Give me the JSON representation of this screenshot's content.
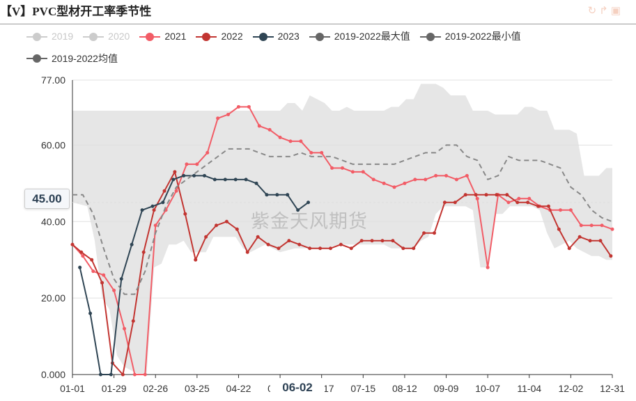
{
  "title": "【V】PVC型材开工率季节性",
  "toolbar_icons": [
    "refresh-icon",
    "share-icon",
    "save-image-icon"
  ],
  "watermark": "紫金天风期货",
  "pointer": {
    "y_label": "45.00",
    "x_label": "06-02"
  },
  "chart_data": {
    "type": "line",
    "xticks": [
      "01-01",
      "01-29",
      "02-26",
      "03-25",
      "04-22",
      "05-20",
      "06-17",
      "07-15",
      "08-12",
      "09-09",
      "10-07",
      "11-04",
      "12-02",
      "12-31"
    ],
    "ylim": [
      0,
      77
    ],
    "yticks": [
      "0.000",
      "20.00",
      "40.00",
      "60.00",
      "77.00"
    ],
    "y_values_of_ticks": [
      0,
      20,
      40,
      60,
      77
    ],
    "grid": true,
    "legend_position": "top",
    "band": {
      "upper_name": "2019-2022最大值",
      "lower_name": "2019-2022最小值",
      "color": "#e6e6e6",
      "upper": [
        [
          0,
          69
        ],
        [
          10,
          69
        ],
        [
          20,
          69
        ],
        [
          30,
          69
        ],
        [
          40,
          69
        ],
        [
          50,
          69
        ],
        [
          60,
          69
        ],
        [
          70,
          69
        ],
        [
          80,
          69
        ],
        [
          90,
          69
        ],
        [
          95,
          69
        ],
        [
          100,
          69
        ],
        [
          110,
          69
        ],
        [
          120,
          69
        ],
        [
          130,
          69
        ],
        [
          140,
          69
        ],
        [
          145,
          71
        ],
        [
          150,
          71
        ],
        [
          155,
          69
        ],
        [
          160,
          73
        ],
        [
          165,
          72
        ],
        [
          170,
          71
        ],
        [
          175,
          69
        ],
        [
          180,
          69
        ],
        [
          185,
          70
        ],
        [
          190,
          69
        ],
        [
          200,
          69
        ],
        [
          210,
          69
        ],
        [
          215,
          70
        ],
        [
          220,
          70
        ],
        [
          225,
          72
        ],
        [
          230,
          72
        ],
        [
          235,
          76
        ],
        [
          240,
          76
        ],
        [
          245,
          76
        ],
        [
          250,
          75
        ],
        [
          255,
          73
        ],
        [
          260,
          73
        ],
        [
          265,
          73
        ],
        [
          270,
          69
        ],
        [
          275,
          69
        ],
        [
          280,
          69
        ],
        [
          285,
          68
        ],
        [
          290,
          68
        ],
        [
          295,
          68
        ],
        [
          300,
          68
        ],
        [
          305,
          70
        ],
        [
          310,
          70
        ],
        [
          315,
          69
        ],
        [
          320,
          69
        ],
        [
          325,
          64
        ],
        [
          330,
          64
        ],
        [
          335,
          64
        ],
        [
          340,
          63
        ],
        [
          345,
          52
        ],
        [
          350,
          52
        ],
        [
          355,
          52
        ],
        [
          360,
          54
        ],
        [
          364,
          54
        ]
      ],
      "lower": [
        [
          0,
          45
        ],
        [
          10,
          44
        ],
        [
          15,
          35
        ],
        [
          20,
          20
        ],
        [
          25,
          17
        ],
        [
          30,
          5
        ],
        [
          35,
          2
        ],
        [
          40,
          1
        ],
        [
          45,
          0
        ],
        [
          50,
          0
        ],
        [
          55,
          28
        ],
        [
          60,
          29
        ],
        [
          65,
          34
        ],
        [
          70,
          34
        ],
        [
          75,
          35
        ],
        [
          80,
          32
        ],
        [
          85,
          32
        ],
        [
          90,
          32
        ],
        [
          95,
          36
        ],
        [
          100,
          36
        ],
        [
          110,
          36
        ],
        [
          115,
          33
        ],
        [
          120,
          32
        ],
        [
          125,
          33
        ],
        [
          130,
          34
        ],
        [
          135,
          33
        ],
        [
          140,
          32
        ],
        [
          150,
          33
        ],
        [
          160,
          33
        ],
        [
          170,
          33
        ],
        [
          180,
          34
        ],
        [
          190,
          34
        ],
        [
          200,
          34
        ],
        [
          210,
          34
        ],
        [
          215,
          33
        ],
        [
          220,
          33
        ],
        [
          225,
          33
        ],
        [
          230,
          33
        ],
        [
          235,
          35
        ],
        [
          240,
          36
        ],
        [
          245,
          42
        ],
        [
          250,
          44
        ],
        [
          255,
          44
        ],
        [
          260,
          44
        ],
        [
          265,
          44
        ],
        [
          270,
          43
        ],
        [
          275,
          28
        ],
        [
          280,
          28
        ],
        [
          285,
          42
        ],
        [
          290,
          42
        ],
        [
          295,
          44
        ],
        [
          300,
          44
        ],
        [
          305,
          44
        ],
        [
          310,
          44
        ],
        [
          315,
          43
        ],
        [
          320,
          37
        ],
        [
          325,
          33
        ],
        [
          330,
          34
        ],
        [
          335,
          35
        ],
        [
          340,
          33
        ],
        [
          345,
          32
        ],
        [
          350,
          31
        ],
        [
          355,
          31
        ],
        [
          360,
          30
        ],
        [
          364,
          30
        ]
      ]
    },
    "series": [
      {
        "name": "2019",
        "color": "#cccccc",
        "visible": false,
        "points": []
      },
      {
        "name": "2020",
        "color": "#cccccc",
        "visible": false,
        "points": []
      },
      {
        "name": "2021",
        "color": "#f25c66",
        "visible": true,
        "points": [
          [
            0,
            34
          ],
          [
            7,
            31
          ],
          [
            14,
            27
          ],
          [
            21,
            26
          ],
          [
            28,
            22
          ],
          [
            35,
            12
          ],
          [
            42,
            0
          ],
          [
            49,
            0
          ],
          [
            56,
            39
          ],
          [
            63,
            43
          ],
          [
            70,
            48
          ],
          [
            77,
            55
          ],
          [
            84,
            55
          ],
          [
            91,
            58
          ],
          [
            98,
            67
          ],
          [
            105,
            68
          ],
          [
            112,
            70
          ],
          [
            119,
            70
          ],
          [
            126,
            65
          ],
          [
            133,
            64
          ],
          [
            140,
            62
          ],
          [
            147,
            61
          ],
          [
            154,
            61
          ],
          [
            161,
            58
          ],
          [
            168,
            58
          ],
          [
            175,
            54
          ],
          [
            182,
            54
          ],
          [
            189,
            53
          ],
          [
            196,
            53
          ],
          [
            203,
            51
          ],
          [
            210,
            50
          ],
          [
            217,
            49
          ],
          [
            224,
            50
          ],
          [
            231,
            51
          ],
          [
            238,
            51
          ],
          [
            245,
            52
          ],
          [
            252,
            52
          ],
          [
            259,
            51
          ],
          [
            266,
            52
          ],
          [
            273,
            46
          ],
          [
            280,
            28
          ],
          [
            287,
            47
          ],
          [
            294,
            45
          ],
          [
            301,
            46
          ],
          [
            308,
            46
          ],
          [
            315,
            44
          ],
          [
            322,
            43
          ],
          [
            329,
            43
          ],
          [
            336,
            43
          ],
          [
            343,
            39
          ],
          [
            350,
            39
          ],
          [
            357,
            39
          ],
          [
            364,
            38
          ]
        ]
      },
      {
        "name": "2022",
        "color": "#c23531",
        "visible": true,
        "points": [
          [
            0,
            34
          ],
          [
            6,
            32
          ],
          [
            13,
            30
          ],
          [
            20,
            24
          ],
          [
            27,
            3
          ],
          [
            34,
            0
          ],
          [
            41,
            14
          ],
          [
            48,
            32
          ],
          [
            55,
            43
          ],
          [
            62,
            48
          ],
          [
            69,
            53
          ],
          [
            76,
            42
          ],
          [
            83,
            30
          ],
          [
            90,
            36
          ],
          [
            97,
            39
          ],
          [
            104,
            40
          ],
          [
            111,
            38
          ],
          [
            118,
            32
          ],
          [
            125,
            36
          ],
          [
            132,
            34
          ],
          [
            139,
            33
          ],
          [
            146,
            35
          ],
          [
            153,
            34
          ],
          [
            160,
            33
          ],
          [
            167,
            33
          ],
          [
            174,
            33
          ],
          [
            181,
            34
          ],
          [
            188,
            33
          ],
          [
            195,
            35
          ],
          [
            202,
            35
          ],
          [
            209,
            35
          ],
          [
            216,
            35
          ],
          [
            223,
            33
          ],
          [
            230,
            33
          ],
          [
            237,
            37
          ],
          [
            244,
            37
          ],
          [
            251,
            45
          ],
          [
            258,
            45
          ],
          [
            265,
            47
          ],
          [
            272,
            47
          ],
          [
            279,
            47
          ],
          [
            286,
            47
          ],
          [
            293,
            47
          ],
          [
            300,
            45
          ],
          [
            307,
            45
          ],
          [
            314,
            44
          ],
          [
            321,
            44
          ],
          [
            328,
            38
          ],
          [
            335,
            33
          ],
          [
            342,
            36
          ],
          [
            349,
            35
          ],
          [
            356,
            35
          ],
          [
            363,
            31
          ]
        ]
      },
      {
        "name": "2023",
        "color": "#2f4554",
        "visible": true,
        "points": [
          [
            5,
            28
          ],
          [
            12,
            16
          ],
          [
            19,
            0
          ],
          [
            26,
            0
          ],
          [
            33,
            25
          ],
          [
            40,
            34
          ],
          [
            47,
            43
          ],
          [
            54,
            44
          ],
          [
            61,
            45
          ],
          [
            68,
            51
          ],
          [
            75,
            52
          ],
          [
            82,
            52
          ],
          [
            89,
            52
          ],
          [
            96,
            51
          ],
          [
            103,
            51
          ],
          [
            110,
            51
          ],
          [
            117,
            51
          ],
          [
            124,
            50
          ],
          [
            131,
            47
          ],
          [
            138,
            47
          ],
          [
            145,
            47
          ],
          [
            152,
            43
          ],
          [
            159,
            45
          ]
        ]
      },
      {
        "name": "2019-2022最大值",
        "color": "#666666",
        "visible": true,
        "points": []
      },
      {
        "name": "2019-2022最小值",
        "color": "#666666",
        "visible": true,
        "points": []
      },
      {
        "name": "2019-2022均值",
        "color": "#888888",
        "visible": true,
        "dashed": true,
        "points": [
          [
            0,
            47
          ],
          [
            7,
            47
          ],
          [
            14,
            42
          ],
          [
            21,
            33
          ],
          [
            28,
            25
          ],
          [
            35,
            21
          ],
          [
            42,
            21
          ],
          [
            49,
            27
          ],
          [
            56,
            37
          ],
          [
            63,
            44
          ],
          [
            70,
            49
          ],
          [
            77,
            51
          ],
          [
            84,
            53
          ],
          [
            91,
            55
          ],
          [
            98,
            57
          ],
          [
            105,
            59
          ],
          [
            112,
            59
          ],
          [
            119,
            59
          ],
          [
            126,
            58
          ],
          [
            133,
            57
          ],
          [
            140,
            57
          ],
          [
            147,
            57
          ],
          [
            154,
            58
          ],
          [
            161,
            57
          ],
          [
            168,
            57
          ],
          [
            175,
            57
          ],
          [
            182,
            56
          ],
          [
            189,
            55
          ],
          [
            196,
            55
          ],
          [
            203,
            55
          ],
          [
            210,
            55
          ],
          [
            217,
            55
          ],
          [
            224,
            56
          ],
          [
            231,
            57
          ],
          [
            238,
            58
          ],
          [
            245,
            58
          ],
          [
            252,
            60
          ],
          [
            259,
            60
          ],
          [
            266,
            57
          ],
          [
            273,
            56
          ],
          [
            280,
            51
          ],
          [
            287,
            52
          ],
          [
            294,
            57
          ],
          [
            301,
            56
          ],
          [
            308,
            56
          ],
          [
            315,
            56
          ],
          [
            322,
            55
          ],
          [
            329,
            54
          ],
          [
            336,
            49
          ],
          [
            343,
            47
          ],
          [
            350,
            43
          ],
          [
            357,
            41
          ],
          [
            364,
            40
          ]
        ]
      }
    ]
  },
  "legend": [
    {
      "label": "2019",
      "color": "#cccccc",
      "off": true
    },
    {
      "label": "2020",
      "color": "#cccccc",
      "off": true
    },
    {
      "label": "2021",
      "color": "#f25c66",
      "off": false
    },
    {
      "label": "2022",
      "color": "#c23531",
      "off": false
    },
    {
      "label": "2023",
      "color": "#2f4554",
      "off": false
    },
    {
      "label": "2019-2022最大值",
      "color": "#666666",
      "off": false
    },
    {
      "label": "2019-2022最小值",
      "color": "#666666",
      "off": false
    },
    {
      "label": "2019-2022均值",
      "color": "#666666",
      "off": false
    }
  ]
}
